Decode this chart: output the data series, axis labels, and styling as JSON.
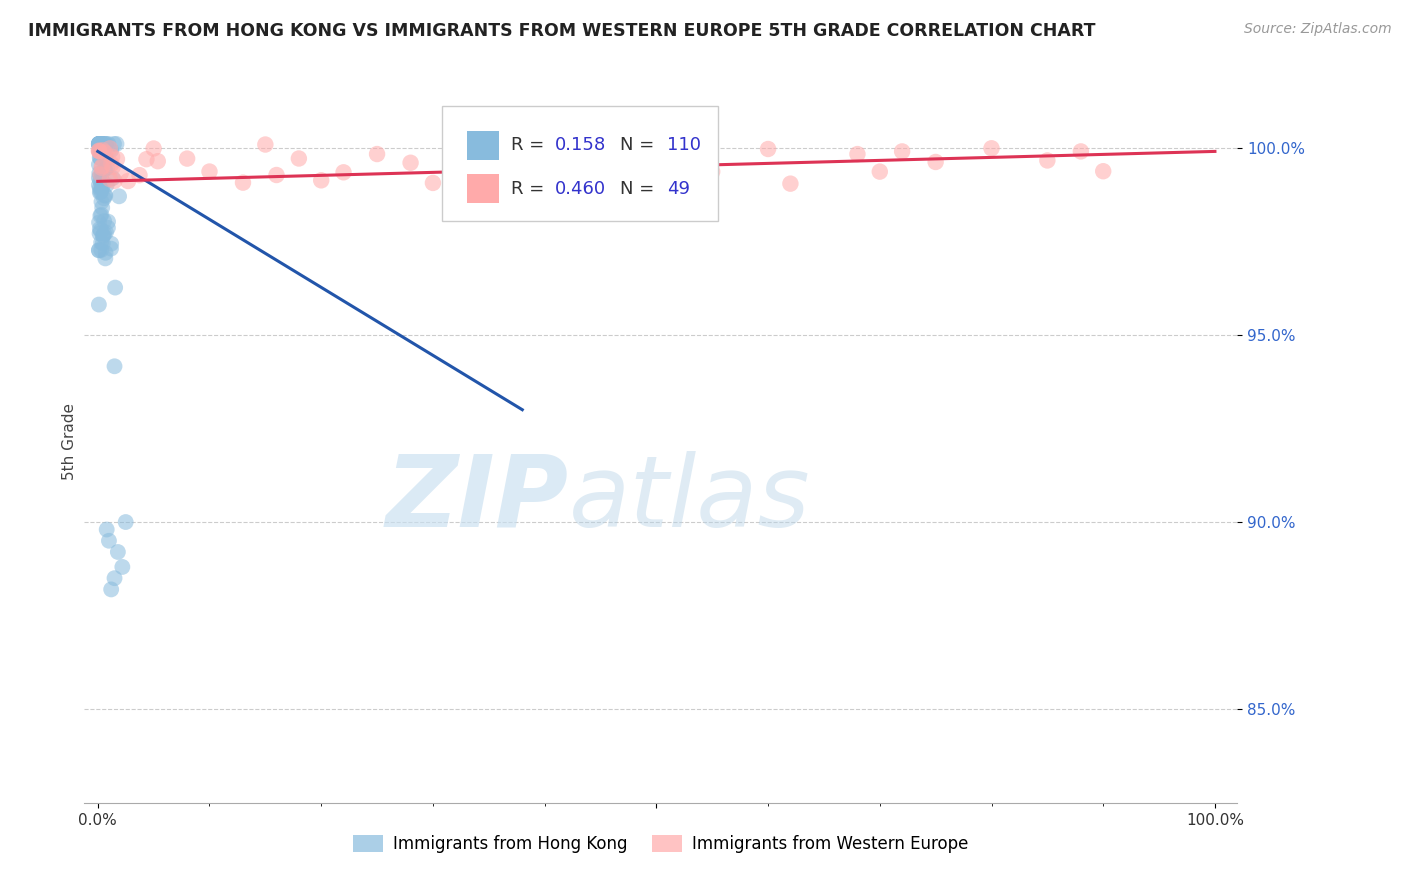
{
  "title": "IMMIGRANTS FROM HONG KONG VS IMMIGRANTS FROM WESTERN EUROPE 5TH GRADE CORRELATION CHART",
  "source": "Source: ZipAtlas.com",
  "ylabel": "5th Grade",
  "blue_color": "#88bbdd",
  "pink_color": "#ffaaaa",
  "blue_line_color": "#2255aa",
  "pink_line_color": "#dd3355",
  "R_blue": 0.158,
  "N_blue": 110,
  "R_pink": 0.46,
  "N_pink": 49,
  "watermark_zip": "ZIP",
  "watermark_atlas": "atlas",
  "legend_text_color": "#3333cc",
  "background_color": "#ffffff",
  "grid_color": "#cccccc",
  "ytick_color": "#3366cc"
}
